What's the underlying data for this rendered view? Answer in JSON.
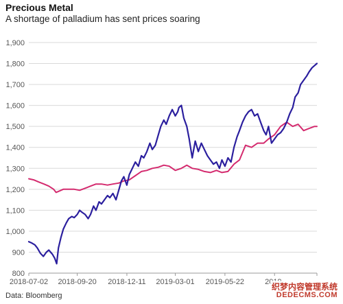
{
  "header": {
    "title": "Precious Metal",
    "subtitle": "A shortage of palladium has sent prices soaring"
  },
  "footer": {
    "source": "Data: Bloomberg"
  },
  "watermark": {
    "line1": "织梦内容管理系统",
    "line2": "DEDECMS.COM"
  },
  "colors": {
    "palladium": "#2b1f9e",
    "gold": "#d42a6e"
  },
  "chart_data": {
    "type": "line",
    "title": "Precious Metal",
    "subtitle": "A shortage of palladium has sent prices soaring",
    "xlabel": "",
    "ylabel": "",
    "ylim": [
      800,
      1900
    ],
    "yticks": [
      800,
      900,
      1000,
      1100,
      1200,
      1300,
      1400,
      1500,
      1600,
      1700,
      1800,
      1900
    ],
    "ytick_labels": [
      "800",
      "900",
      "1,000",
      "1,100",
      "1,200",
      "1,300",
      "1,400",
      "1,500",
      "1,600",
      "1,700",
      "1,800",
      "1,900"
    ],
    "xlim": [
      "2018-07-02",
      "2019-10-21"
    ],
    "xticks": [
      "2018-07-02",
      "2018-09-20",
      "2018-12-11",
      "2019-03-01",
      "2019-05-22",
      "2019-08-12"
    ],
    "xtick_labels": [
      "2018-07-02",
      "2018-09-20",
      "2018-12-11",
      "2019-03-01",
      "2019-05-22",
      "2019-"
    ],
    "grid": true,
    "source": "Data: Bloomberg",
    "series": [
      {
        "name": "",
        "color": "#2b1f9e",
        "x": [
          "2018-07-02",
          "2018-07-06",
          "2018-07-12",
          "2018-07-16",
          "2018-07-21",
          "2018-07-26",
          "2018-07-31",
          "2018-08-04",
          "2018-08-10",
          "2018-08-14",
          "2018-08-17",
          "2018-08-20",
          "2018-08-24",
          "2018-08-28",
          "2018-09-02",
          "2018-09-06",
          "2018-09-11",
          "2018-09-15",
          "2018-09-20",
          "2018-09-24",
          "2018-09-28",
          "2018-10-03",
          "2018-10-08",
          "2018-10-12",
          "2018-10-17",
          "2018-10-21",
          "2018-10-26",
          "2018-10-30",
          "2018-11-04",
          "2018-11-09",
          "2018-11-13",
          "2018-11-18",
          "2018-11-23",
          "2018-11-28",
          "2018-12-02",
          "2018-12-06",
          "2018-12-11",
          "2018-12-15",
          "2018-12-20",
          "2018-12-25",
          "2018-12-30",
          "2019-01-04",
          "2019-01-08",
          "2019-01-13",
          "2019-01-18",
          "2019-01-22",
          "2019-01-27",
          "2019-02-01",
          "2019-02-05",
          "2019-02-10",
          "2019-02-14",
          "2019-02-19",
          "2019-02-24",
          "2019-03-01",
          "2019-03-05",
          "2019-03-07",
          "2019-03-11",
          "2019-03-15",
          "2019-03-20",
          "2019-03-24",
          "2019-03-29",
          "2019-04-03",
          "2019-04-08",
          "2019-04-13",
          "2019-04-18",
          "2019-04-23",
          "2019-04-28",
          "2019-05-03",
          "2019-05-08",
          "2019-05-13",
          "2019-05-17",
          "2019-05-22",
          "2019-05-27",
          "2019-06-01",
          "2019-06-06",
          "2019-06-11",
          "2019-06-15",
          "2019-06-20",
          "2019-06-25",
          "2019-06-30",
          "2019-07-05",
          "2019-07-10",
          "2019-07-15",
          "2019-07-20",
          "2019-07-25",
          "2019-07-29",
          "2019-08-02",
          "2019-08-07",
          "2019-08-12",
          "2019-08-17",
          "2019-08-22",
          "2019-08-27",
          "2019-09-01",
          "2019-09-06",
          "2019-09-11",
          "2019-09-15",
          "2019-09-20",
          "2019-09-24",
          "2019-09-29",
          "2019-10-04",
          "2019-10-08",
          "2019-10-13",
          "2019-10-17",
          "2019-10-21"
        ],
        "values": [
          950,
          945,
          935,
          920,
          895,
          880,
          900,
          910,
          890,
          870,
          845,
          920,
          970,
          1010,
          1040,
          1060,
          1070,
          1065,
          1080,
          1100,
          1090,
          1080,
          1060,
          1080,
          1120,
          1100,
          1140,
          1130,
          1150,
          1170,
          1160,
          1180,
          1150,
          1200,
          1240,
          1260,
          1220,
          1270,
          1300,
          1330,
          1310,
          1360,
          1350,
          1380,
          1420,
          1390,
          1410,
          1460,
          1500,
          1530,
          1510,
          1550,
          1580,
          1550,
          1570,
          1590,
          1600,
          1540,
          1500,
          1440,
          1350,
          1430,
          1380,
          1420,
          1390,
          1360,
          1340,
          1320,
          1330,
          1300,
          1340,
          1310,
          1350,
          1330,
          1400,
          1450,
          1480,
          1520,
          1550,
          1570,
          1580,
          1550,
          1560,
          1520,
          1480,
          1460,
          1500,
          1420,
          1440,
          1460,
          1470,
          1490,
          1520,
          1560,
          1590,
          1640,
          1660,
          1700,
          1720,
          1740,
          1760,
          1780,
          1790,
          1800
        ]
      },
      {
        "name": "",
        "color": "#d42a6e",
        "x": [
          "2018-07-02",
          "2018-07-10",
          "2018-07-18",
          "2018-07-27",
          "2018-08-04",
          "2018-08-12",
          "2018-08-16",
          "2018-08-20",
          "2018-08-28",
          "2018-09-06",
          "2018-09-15",
          "2018-09-24",
          "2018-10-03",
          "2018-10-12",
          "2018-10-21",
          "2018-10-30",
          "2018-11-09",
          "2018-11-18",
          "2018-11-28",
          "2018-12-06",
          "2018-12-15",
          "2018-12-25",
          "2019-01-04",
          "2019-01-13",
          "2019-01-22",
          "2019-02-01",
          "2019-02-10",
          "2019-02-19",
          "2019-03-01",
          "2019-03-11",
          "2019-03-20",
          "2019-03-29",
          "2019-04-08",
          "2019-04-18",
          "2019-04-28",
          "2019-05-08",
          "2019-05-17",
          "2019-05-27",
          "2019-06-06",
          "2019-06-15",
          "2019-06-25",
          "2019-07-05",
          "2019-07-15",
          "2019-07-25",
          "2019-08-02",
          "2019-08-12",
          "2019-08-22",
          "2019-09-01",
          "2019-09-11",
          "2019-09-20",
          "2019-09-29",
          "2019-10-08",
          "2019-10-17",
          "2019-10-21"
        ],
        "values": [
          1250,
          1245,
          1235,
          1225,
          1215,
          1200,
          1185,
          1190,
          1200,
          1200,
          1200,
          1195,
          1205,
          1215,
          1225,
          1225,
          1220,
          1225,
          1230,
          1240,
          1245,
          1265,
          1285,
          1290,
          1300,
          1305,
          1315,
          1310,
          1290,
          1300,
          1315,
          1300,
          1295,
          1285,
          1280,
          1290,
          1280,
          1285,
          1320,
          1340,
          1410,
          1400,
          1420,
          1420,
          1440,
          1460,
          1500,
          1520,
          1500,
          1510,
          1480,
          1490,
          1500,
          1500
        ]
      }
    ]
  }
}
